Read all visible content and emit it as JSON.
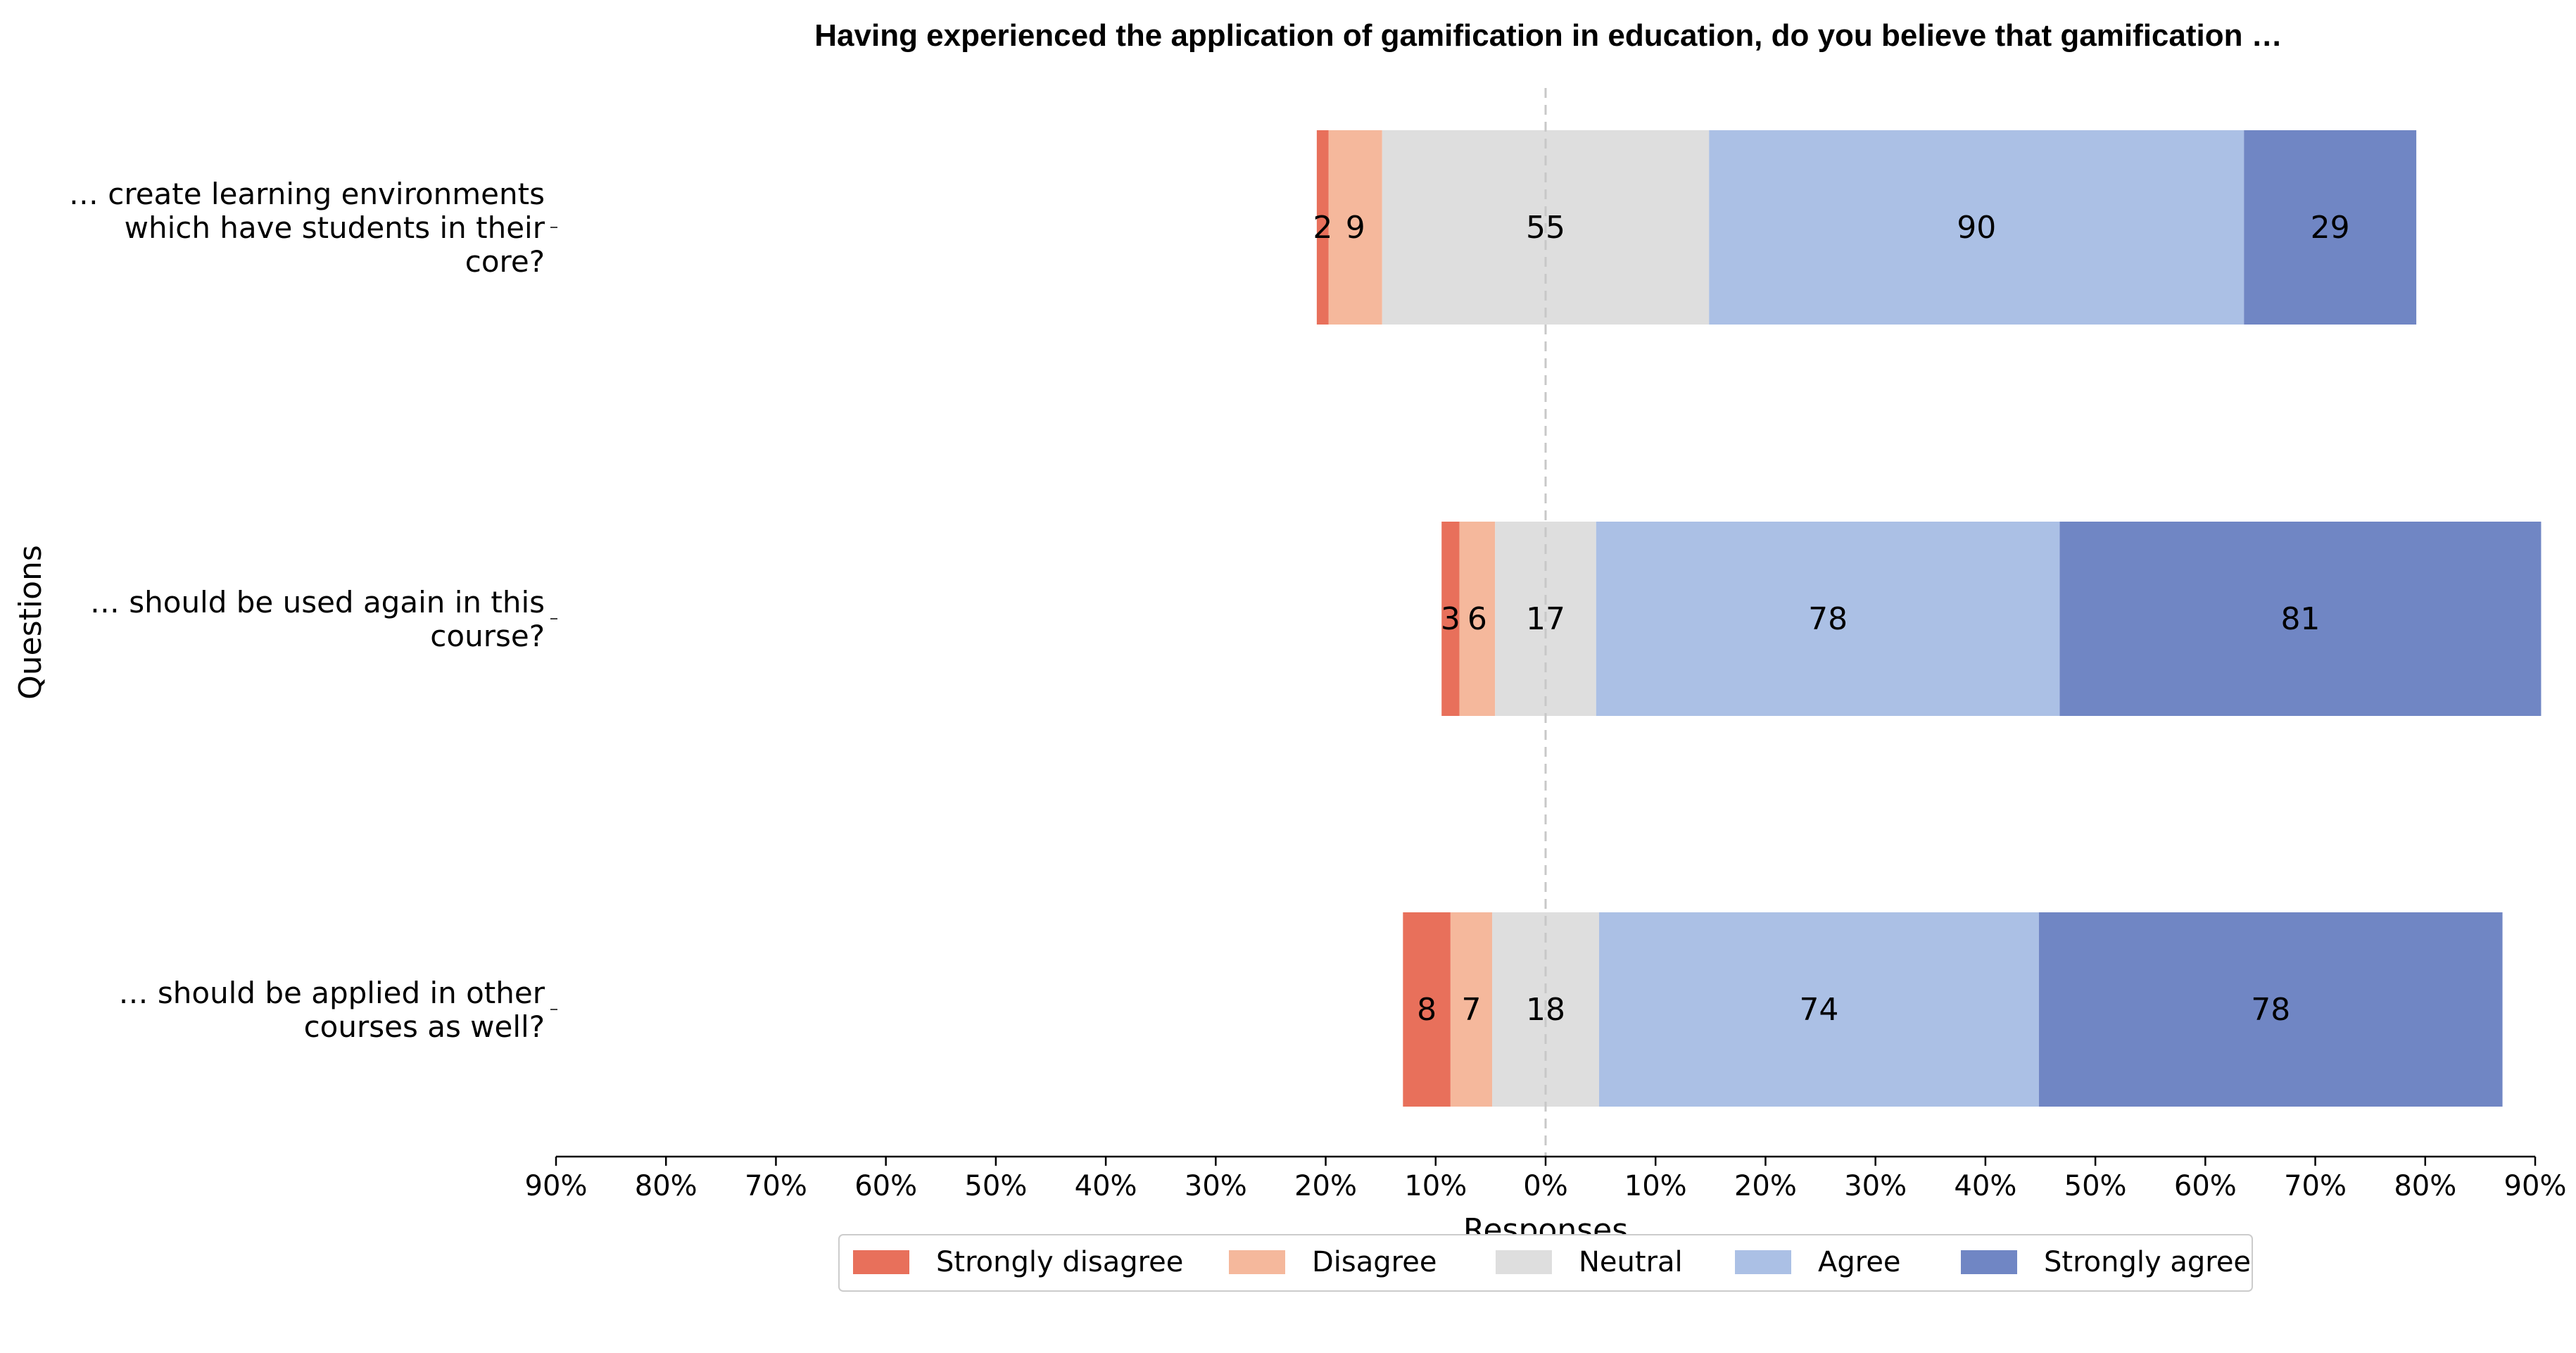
{
  "chart_data": {
    "type": "bar",
    "orientation": "horizontal-diverging-stacked",
    "title": "Having experienced the application of gamification in education, do you believe that gamification …",
    "xlabel": "Responses",
    "ylabel": "Questions",
    "xlim_percent": [
      -90,
      90
    ],
    "x_ticks": [
      "90%",
      "80%",
      "70%",
      "60%",
      "50%",
      "40%",
      "30%",
      "20%",
      "10%",
      "0%",
      "10%",
      "20%",
      "30%",
      "40%",
      "50%",
      "60%",
      "70%",
      "80%",
      "90%"
    ],
    "categories": [
      [
        "… create learning environments",
        "which have students in their",
        "core?"
      ],
      [
        "… should be used again in this",
        "course?"
      ],
      [
        "… should be applied in other",
        "courses as well?"
      ]
    ],
    "series": [
      {
        "name": "Strongly disagree",
        "color": "#e8705b",
        "values": [
          2,
          3,
          8
        ]
      },
      {
        "name": "Disagree",
        "color": "#f5b89c",
        "values": [
          9,
          6,
          7
        ]
      },
      {
        "name": "Neutral",
        "color": "#dedede",
        "values": [
          55,
          17,
          18
        ]
      },
      {
        "name": "Agree",
        "color": "#abc0e5",
        "values": [
          90,
          78,
          74
        ]
      },
      {
        "name": "Strongly agree",
        "color": "#7086c4",
        "values": [
          29,
          81,
          78
        ]
      }
    ],
    "legend_position": "bottom-center",
    "center_line": "dashed at 0%"
  }
}
